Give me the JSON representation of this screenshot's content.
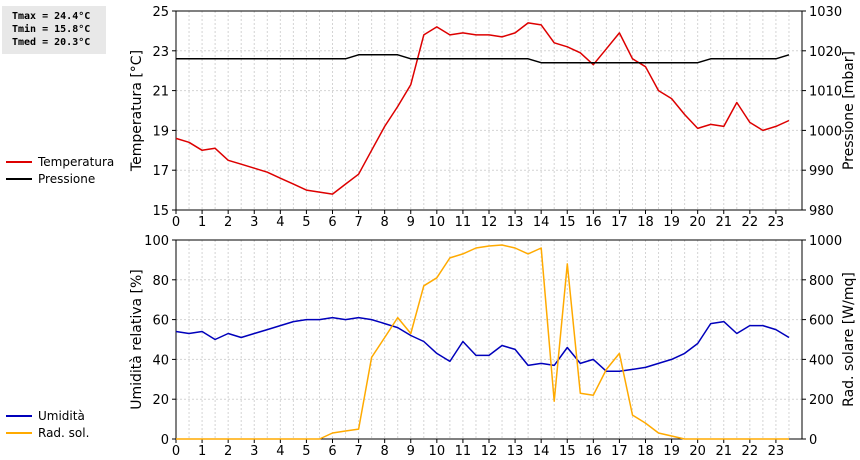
{
  "stats": {
    "tmax": "Tmax = 24.4°C",
    "tmin": "Tmin = 15.8°C",
    "tmed": "Tmed = 20.3°C"
  },
  "legend": {
    "top": [
      {
        "label": "Temperatura",
        "color": "#dd0000"
      },
      {
        "label": "Pressione",
        "color": "#000000"
      }
    ],
    "bottom": [
      {
        "label": "Umidità",
        "color": "#0000bb"
      },
      {
        "label": "Rad. sol.",
        "color": "#ffaa00"
      }
    ]
  },
  "chart_data": [
    {
      "type": "line",
      "xlabel": "",
      "x_ticks": [
        "0",
        "1",
        "2",
        "3",
        "4",
        "5",
        "6",
        "7",
        "8",
        "9",
        "10",
        "11",
        "12",
        "13",
        "14",
        "15",
        "16",
        "17",
        "18",
        "19",
        "20",
        "21",
        "22",
        "23"
      ],
      "xlim": [
        0,
        24
      ],
      "grid": true,
      "ylabel": "Temperatura [°C]",
      "ylim": [
        15,
        25
      ],
      "y_ticks": [
        15,
        17,
        19,
        21,
        23,
        25
      ],
      "ylabel_right": "Pressione [mbar]",
      "ylim_right": [
        980,
        1030
      ],
      "y_ticks_right": [
        980,
        990,
        1000,
        1010,
        1020,
        1030
      ],
      "series": [
        {
          "name": "Temperatura",
          "axis": "left",
          "color": "#dd0000",
          "x": [
            0,
            0.5,
            1,
            1.5,
            2,
            2.5,
            3,
            3.5,
            4,
            4.5,
            5,
            5.5,
            6,
            6.5,
            7,
            7.5,
            8,
            8.5,
            9,
            9.5,
            10,
            10.5,
            11,
            11.5,
            12,
            12.5,
            13,
            13.5,
            14,
            14.5,
            15,
            15.5,
            16,
            16.5,
            17,
            17.5,
            18,
            18.5,
            19,
            19.5,
            20,
            20.5,
            21,
            21.5,
            22,
            22.5,
            23,
            23.5
          ],
          "values": [
            18.6,
            18.4,
            18.0,
            18.1,
            17.5,
            17.3,
            17.1,
            16.9,
            16.6,
            16.3,
            16.0,
            15.9,
            15.8,
            16.3,
            16.8,
            18.0,
            19.2,
            20.2,
            21.3,
            23.8,
            24.2,
            23.8,
            23.9,
            23.8,
            23.8,
            23.7,
            23.9,
            24.4,
            24.3,
            23.4,
            23.2,
            22.9,
            22.3,
            23.1,
            23.9,
            22.6,
            22.2,
            21.0,
            20.6,
            19.8,
            19.1,
            19.3,
            19.2,
            20.4,
            19.4,
            19.0,
            19.2,
            19.5
          ]
        },
        {
          "name": "Pressione",
          "axis": "right",
          "color": "#000000",
          "x": [
            0,
            0.5,
            1,
            1.5,
            2,
            2.5,
            3,
            3.5,
            4,
            4.5,
            5,
            5.5,
            6,
            6.5,
            7,
            7.5,
            8,
            8.5,
            9,
            9.5,
            10,
            10.5,
            11,
            11.5,
            12,
            12.5,
            13,
            13.5,
            14,
            14.5,
            15,
            15.5,
            16,
            16.5,
            17,
            17.5,
            18,
            18.5,
            19,
            19.5,
            20,
            20.5,
            21,
            21.5,
            22,
            22.5,
            23,
            23.5
          ],
          "values": [
            1018,
            1018,
            1018,
            1018,
            1018,
            1018,
            1018,
            1018,
            1018,
            1018,
            1018,
            1018,
            1018,
            1018,
            1019,
            1019,
            1019,
            1019,
            1018,
            1018,
            1018,
            1018,
            1018,
            1018,
            1018,
            1018,
            1018,
            1018,
            1017,
            1017,
            1017,
            1017,
            1017,
            1017,
            1017,
            1017,
            1017,
            1017,
            1017,
            1017,
            1017,
            1018,
            1018,
            1018,
            1018,
            1018,
            1018,
            1019
          ]
        }
      ]
    },
    {
      "type": "line",
      "xlabel": "",
      "x_ticks": [
        "0",
        "1",
        "2",
        "3",
        "4",
        "5",
        "6",
        "7",
        "8",
        "9",
        "10",
        "11",
        "12",
        "13",
        "14",
        "15",
        "16",
        "17",
        "18",
        "19",
        "20",
        "21",
        "22",
        "23"
      ],
      "xlim": [
        0,
        24
      ],
      "grid": true,
      "ylabel": "Umidità relativa [%]",
      "ylim": [
        0,
        100
      ],
      "y_ticks": [
        0,
        20,
        40,
        60,
        80,
        100
      ],
      "ylabel_right": "Rad. solare [W/mq]",
      "ylim_right": [
        0,
        1000
      ],
      "y_ticks_right": [
        0,
        200,
        400,
        600,
        800,
        1000
      ],
      "series": [
        {
          "name": "Umidità",
          "axis": "left",
          "color": "#0000bb",
          "x": [
            0,
            0.5,
            1,
            1.5,
            2,
            2.5,
            3,
            3.5,
            4,
            4.5,
            5,
            5.5,
            6,
            6.5,
            7,
            7.5,
            8,
            8.5,
            9,
            9.5,
            10,
            10.5,
            11,
            11.5,
            12,
            12.5,
            13,
            13.5,
            14,
            14.5,
            15,
            15.5,
            16,
            16.5,
            17,
            17.5,
            18,
            18.5,
            19,
            19.5,
            20,
            20.5,
            21,
            21.5,
            22,
            22.5,
            23,
            23.5
          ],
          "values": [
            54,
            53,
            54,
            50,
            53,
            51,
            53,
            55,
            57,
            59,
            60,
            60,
            61,
            60,
            61,
            60,
            58,
            56,
            52,
            49,
            43,
            39,
            49,
            42,
            42,
            47,
            45,
            37,
            38,
            37,
            46,
            38,
            40,
            34,
            34,
            35,
            36,
            38,
            40,
            43,
            48,
            58,
            59,
            53,
            57,
            57,
            55,
            51
          ]
        },
        {
          "name": "Rad. sol.",
          "axis": "right",
          "color": "#ffaa00",
          "x": [
            0,
            0.5,
            1,
            1.5,
            2,
            2.5,
            3,
            3.5,
            4,
            4.5,
            5,
            5.5,
            6,
            6.5,
            7,
            7.5,
            8,
            8.5,
            9,
            9.5,
            10,
            10.5,
            11,
            11.5,
            12,
            12.5,
            13,
            13.5,
            14,
            14.5,
            15,
            15.5,
            16,
            16.5,
            17,
            17.5,
            18,
            18.5,
            19,
            19.5,
            20,
            20.5,
            21,
            21.5,
            22,
            22.5,
            23,
            23.5
          ],
          "values": [
            0,
            0,
            0,
            0,
            0,
            0,
            0,
            0,
            0,
            0,
            0,
            0,
            30,
            40,
            50,
            410,
            510,
            610,
            530,
            770,
            810,
            910,
            930,
            960,
            970,
            975,
            960,
            930,
            960,
            190,
            880,
            230,
            220,
            350,
            430,
            120,
            80,
            30,
            15,
            0,
            0,
            0,
            0,
            0,
            0,
            0,
            0,
            0
          ]
        }
      ]
    }
  ]
}
